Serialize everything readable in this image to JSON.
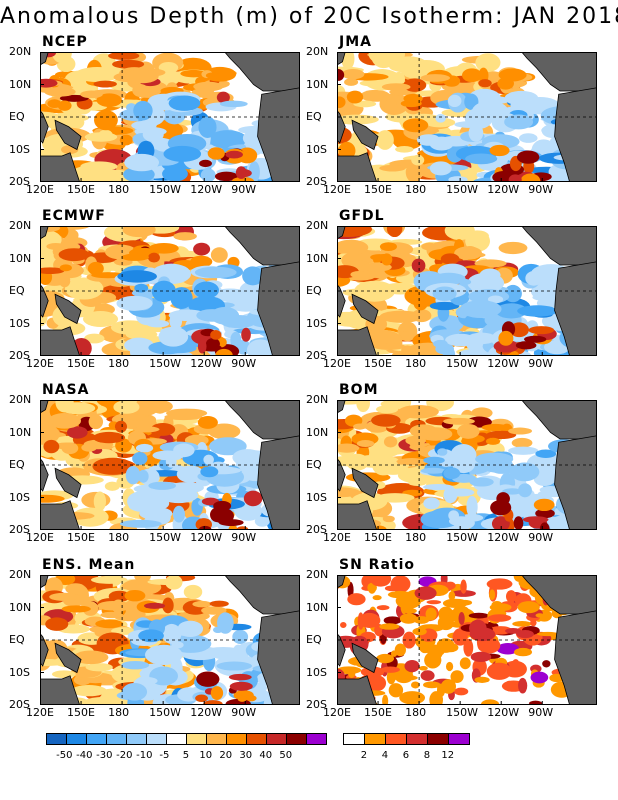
{
  "title": "Anomalous Depth (m) of 20C Isotherm: JAN 2018",
  "lat_labels": [
    "20N",
    "10N",
    "EQ",
    "10S",
    "20S"
  ],
  "lon_labels": [
    "120E",
    "150E",
    "180",
    "150W",
    "120W",
    "90W"
  ],
  "panels": [
    {
      "label": "NCEP"
    },
    {
      "label": "JMA"
    },
    {
      "label": "ECMWF"
    },
    {
      "label": "GFDL"
    },
    {
      "label": "NASA"
    },
    {
      "label": "BOM"
    },
    {
      "label": "ENS. Mean"
    },
    {
      "label": "SN Ratio"
    }
  ],
  "colorbar_anomaly": {
    "labels": [
      "-50",
      "-40",
      "-30",
      "-20",
      "-10",
      "-5",
      "5",
      "10",
      "20",
      "30",
      "40",
      "50"
    ],
    "colors": [
      "#1565c0",
      "#1e88e5",
      "#42a5f5",
      "#64b5f6",
      "#90caf9",
      "#bbdefb",
      "#ffffff",
      "#ffe082",
      "#ffb74d",
      "#ff8f00",
      "#e65100",
      "#c62828",
      "#8b0000",
      "#9c00d0"
    ]
  },
  "colorbar_snratio": {
    "labels": [
      "2",
      "4",
      "6",
      "8",
      "12"
    ],
    "colors": [
      "#ffffff",
      "#ff9800",
      "#ff5722",
      "#d32f2f",
      "#8b0000",
      "#9c00d0"
    ]
  },
  "land_color": "#606060"
}
